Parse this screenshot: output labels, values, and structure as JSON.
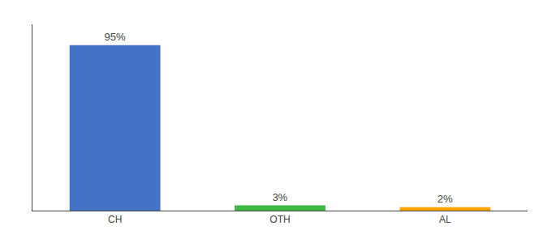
{
  "chart_data": {
    "type": "bar",
    "categories": [
      "CH",
      "OTH",
      "AL"
    ],
    "values": [
      95,
      3,
      2
    ],
    "colors": [
      "#4472C4",
      "#3CB843",
      "#FFA500"
    ],
    "data_labels": true,
    "value_labels": [
      "95%",
      "3%",
      "2%"
    ],
    "ylim": [
      0,
      107
    ],
    "grid": false,
    "tick_labels": "x"
  }
}
